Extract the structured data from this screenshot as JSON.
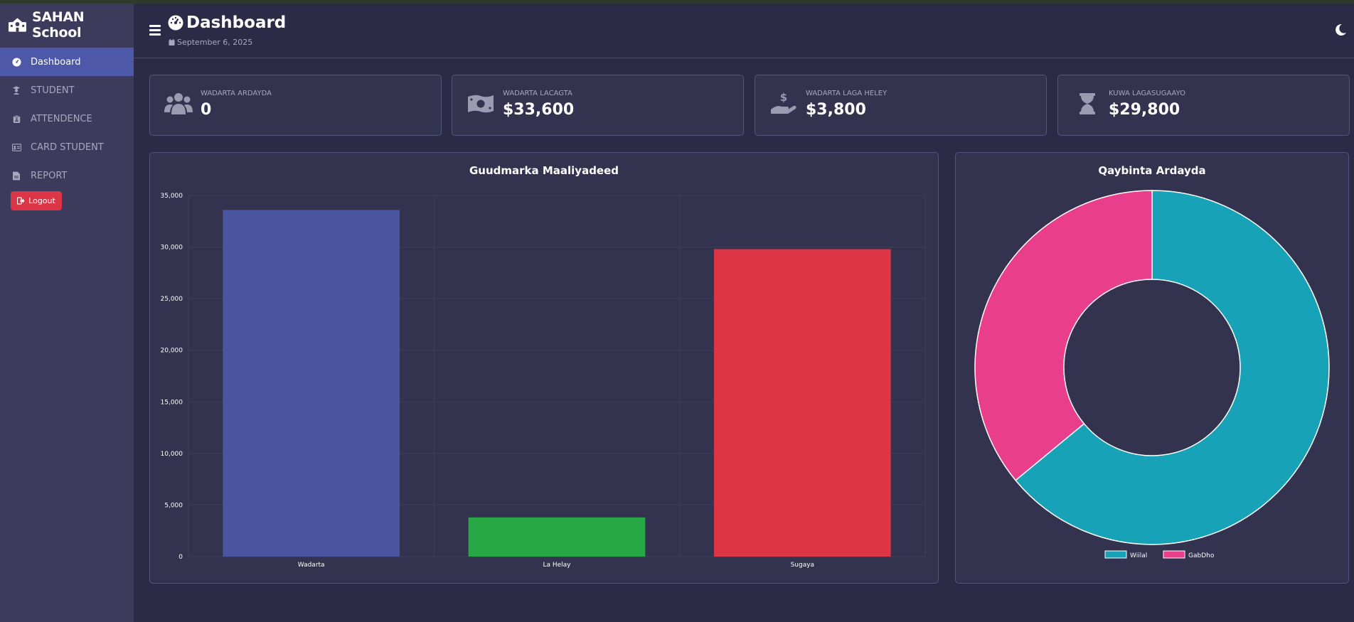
{
  "brand": {
    "name": "SAHAN School"
  },
  "nav": [
    {
      "label": "Dashboard",
      "icon": "tachometer-icon"
    },
    {
      "label": "STUDENT",
      "icon": "graduate-icon"
    },
    {
      "label": "ATTENDENCE",
      "icon": "clipboard-icon"
    },
    {
      "label": "CARD STUDENT",
      "icon": "id-card-icon"
    },
    {
      "label": "REPORT",
      "icon": "file-icon"
    }
  ],
  "logout": {
    "label": "Logout"
  },
  "header": {
    "title": "Dashboard",
    "date": "September 6, 2025"
  },
  "stats": [
    {
      "label": "WADARTA ARDAYDA",
      "value": "0",
      "icon": "users-icon"
    },
    {
      "label": "WADARTA LACAGTA",
      "value": "$33,600",
      "icon": "money-bill-icon"
    },
    {
      "label": "WADARTA LAGA HELEY",
      "value": "$3,800",
      "icon": "hand-dollar-icon"
    },
    {
      "label": "KUWA LAGASUGAAYO",
      "value": "$29,800",
      "icon": "hourglass-icon"
    }
  ],
  "colors": {
    "bar1": "#4a55a2",
    "bar2": "#28a745",
    "bar3": "#dc3545",
    "donut1": "#17a2b8",
    "donut2": "#e83e8c",
    "accent": "#4e58a8"
  },
  "chart_data": [
    {
      "type": "bar",
      "title": "Guudmarka Maaliyadeed",
      "categories": [
        "Wadarta",
        "La Helay",
        "Sugaya"
      ],
      "values": [
        33600,
        3800,
        29800
      ],
      "yticks": [
        "0",
        "5,000",
        "10,000",
        "15,000",
        "20,000",
        "25,000",
        "30,000",
        "35,000"
      ],
      "ylim": [
        0,
        35000
      ],
      "grid": true
    },
    {
      "type": "pie",
      "title": "Qaybinta Ardayda",
      "labels": [
        "Wiilal",
        "GabDho"
      ],
      "values": [
        64,
        36
      ],
      "legend": "bottom"
    }
  ]
}
